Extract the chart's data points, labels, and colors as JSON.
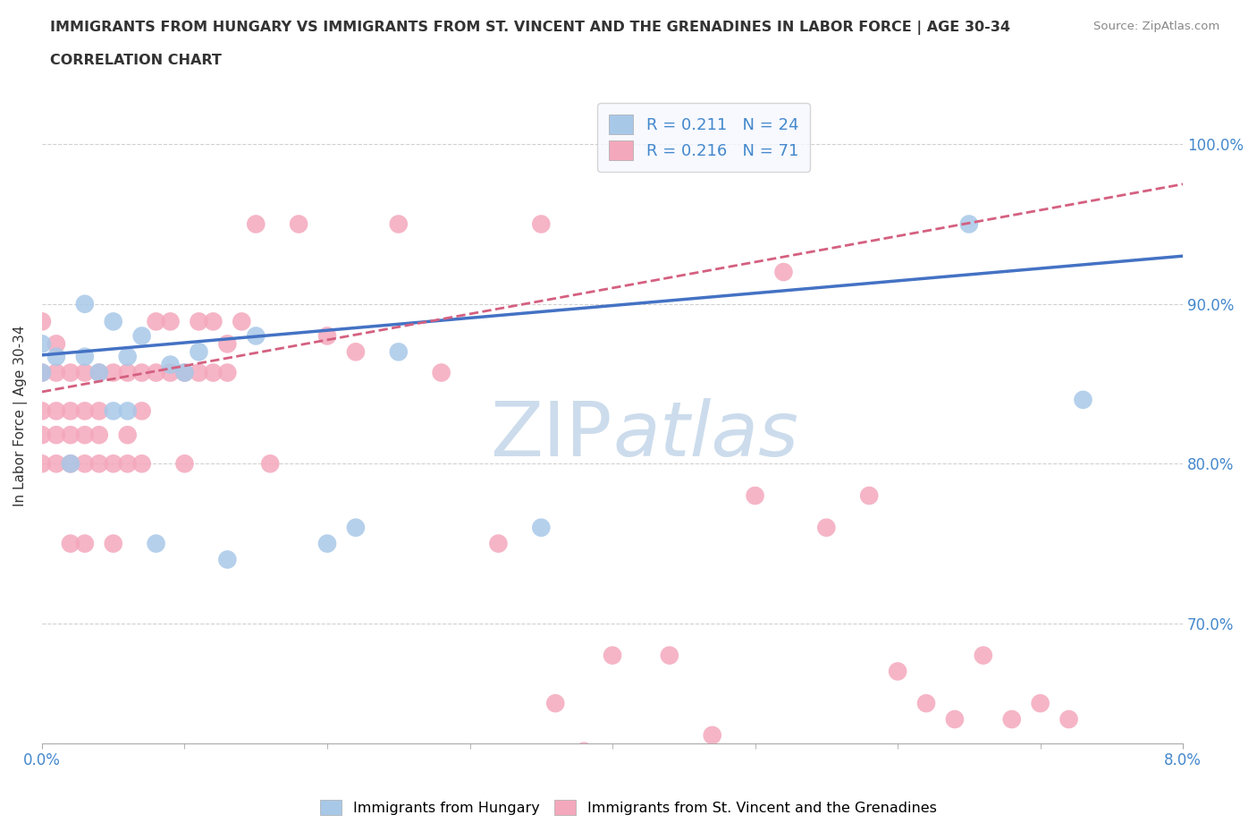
{
  "title_line1": "IMMIGRANTS FROM HUNGARY VS IMMIGRANTS FROM ST. VINCENT AND THE GRENADINES IN LABOR FORCE | AGE 30-34",
  "title_line2": "CORRELATION CHART",
  "source_text": "Source: ZipAtlas.com",
  "ylabel": "In Labor Force | Age 30-34",
  "xmin": 0.0,
  "xmax": 0.08,
  "ymin": 0.625,
  "ymax": 1.035,
  "yticks": [
    0.7,
    0.8,
    0.9,
    1.0
  ],
  "ytick_labels": [
    "70.0%",
    "80.0%",
    "90.0%",
    "100.0%"
  ],
  "xticks": [
    0.0,
    0.08
  ],
  "xtick_labels": [
    "0.0%",
    "8.0%"
  ],
  "hungary_R": 0.211,
  "hungary_N": 24,
  "stvincent_R": 0.216,
  "stvincent_N": 71,
  "hungary_color": "#a8c8e8",
  "stvincent_color": "#f4a8bc",
  "hungary_line_color": "#4472c4",
  "stvincent_line_color": "#d46080",
  "legend_bg": "#f5f8ff",
  "watermark_color": "#ccdcec",
  "title_color": "#333333",
  "ylabel_color": "#333333",
  "tick_label_color": "#4488cc",
  "grid_color": "#cccccc",
  "hungary_x": [
    0.0,
    0.0,
    0.001,
    0.002,
    0.003,
    0.003,
    0.004,
    0.005,
    0.005,
    0.006,
    0.006,
    0.007,
    0.008,
    0.009,
    0.01,
    0.011,
    0.013,
    0.015,
    0.02,
    0.022,
    0.025,
    0.035,
    0.065,
    0.073
  ],
  "hungary_y": [
    0.857,
    0.875,
    0.867,
    0.8,
    0.867,
    0.9,
    0.857,
    0.889,
    0.833,
    0.833,
    0.867,
    0.88,
    0.75,
    0.862,
    0.857,
    0.87,
    0.74,
    0.88,
    0.75,
    0.76,
    0.87,
    0.76,
    0.95,
    0.84
  ],
  "stvincent_x": [
    0.0,
    0.0,
    0.0,
    0.0,
    0.0,
    0.001,
    0.001,
    0.001,
    0.001,
    0.001,
    0.002,
    0.002,
    0.002,
    0.002,
    0.002,
    0.003,
    0.003,
    0.003,
    0.003,
    0.003,
    0.004,
    0.004,
    0.004,
    0.004,
    0.005,
    0.005,
    0.005,
    0.006,
    0.006,
    0.006,
    0.007,
    0.007,
    0.007,
    0.008,
    0.008,
    0.009,
    0.009,
    0.01,
    0.01,
    0.011,
    0.011,
    0.012,
    0.012,
    0.013,
    0.013,
    0.014,
    0.015,
    0.016,
    0.018,
    0.02,
    0.022,
    0.025,
    0.028,
    0.032,
    0.035,
    0.036,
    0.038,
    0.04,
    0.044,
    0.047,
    0.05,
    0.052,
    0.055,
    0.058,
    0.06,
    0.062,
    0.064,
    0.066,
    0.068,
    0.07,
    0.072
  ],
  "stvincent_y": [
    0.8,
    0.818,
    0.833,
    0.857,
    0.889,
    0.8,
    0.818,
    0.833,
    0.857,
    0.875,
    0.75,
    0.8,
    0.818,
    0.833,
    0.857,
    0.75,
    0.8,
    0.818,
    0.833,
    0.857,
    0.8,
    0.818,
    0.833,
    0.857,
    0.75,
    0.8,
    0.857,
    0.8,
    0.818,
    0.857,
    0.8,
    0.833,
    0.857,
    0.857,
    0.889,
    0.857,
    0.889,
    0.8,
    0.857,
    0.857,
    0.889,
    0.857,
    0.889,
    0.857,
    0.875,
    0.889,
    0.95,
    0.8,
    0.95,
    0.88,
    0.87,
    0.95,
    0.857,
    0.75,
    0.95,
    0.65,
    0.62,
    0.68,
    0.68,
    0.63,
    0.78,
    0.92,
    0.76,
    0.78,
    0.67,
    0.65,
    0.64,
    0.68,
    0.64,
    0.65,
    0.64
  ],
  "hungary_trend_x0": 0.0,
  "hungary_trend_x1": 0.08,
  "hungary_trend_y0": 0.868,
  "hungary_trend_y1": 0.93,
  "stvincent_trend_x0": 0.0,
  "stvincent_trend_x1": 0.08,
  "stvincent_trend_y0": 0.845,
  "stvincent_trend_y1": 0.975
}
